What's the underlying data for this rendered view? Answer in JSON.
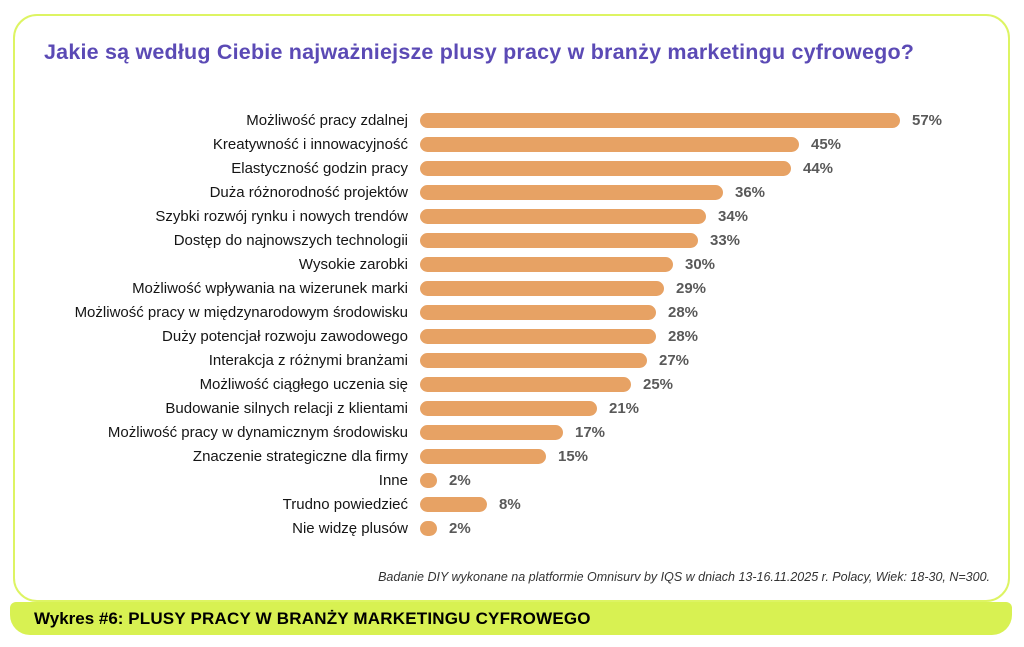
{
  "title": "Jakie są według Ciebie najważniejsze plusy pracy w branży marketingu cyfrowego?",
  "source_note": "Badanie DIY wykonane na platformie Omnisurv by IQS w dniach 13-16.11.2025 r.  Polacy, Wiek: 18-30, N=300.",
  "footer": {
    "prefix": "Wykres #6: ",
    "label": "PLUSY PRACY W BRANŻY MARKETINGU CYFROWEGO"
  },
  "colors": {
    "accent_green": "#d8f152",
    "border_green": "#ddf463",
    "bar_orange": "#e7a264",
    "title_purple": "#5b4ab5",
    "value_gray": "#595959"
  },
  "chart_data": {
    "type": "bar",
    "orientation": "horizontal",
    "title": "Jakie są według Ciebie najważniejsze plusy pracy w branży marketingu cyfrowego?",
    "unit": "%",
    "xlim": [
      0,
      60
    ],
    "grid": false,
    "legend": false,
    "categories": [
      "Możliwość pracy zdalnej",
      "Kreatywność i innowacyjność",
      "Elastyczność godzin pracy",
      "Duża różnorodność projektów",
      "Szybki rozwój rynku i nowych trendów",
      "Dostęp do najnowszych technologii",
      "Wysokie zarobki",
      "Możliwość wpływania na wizerunek marki",
      "Możliwość pracy w międzynarodowym środowisku",
      "Duży potencjał rozwoju zawodowego",
      "Interakcja z różnymi branżami",
      "Możliwość ciągłego uczenia się",
      "Budowanie silnych relacji z klientami",
      "Możliwość pracy w dynamicznym środowisku",
      "Znaczenie strategiczne dla firmy",
      "Inne",
      "Trudno powiedzieć",
      "Nie widzę plusów"
    ],
    "values": [
      57,
      45,
      44,
      36,
      34,
      33,
      30,
      29,
      28,
      28,
      27,
      25,
      21,
      17,
      15,
      2,
      8,
      2
    ]
  }
}
